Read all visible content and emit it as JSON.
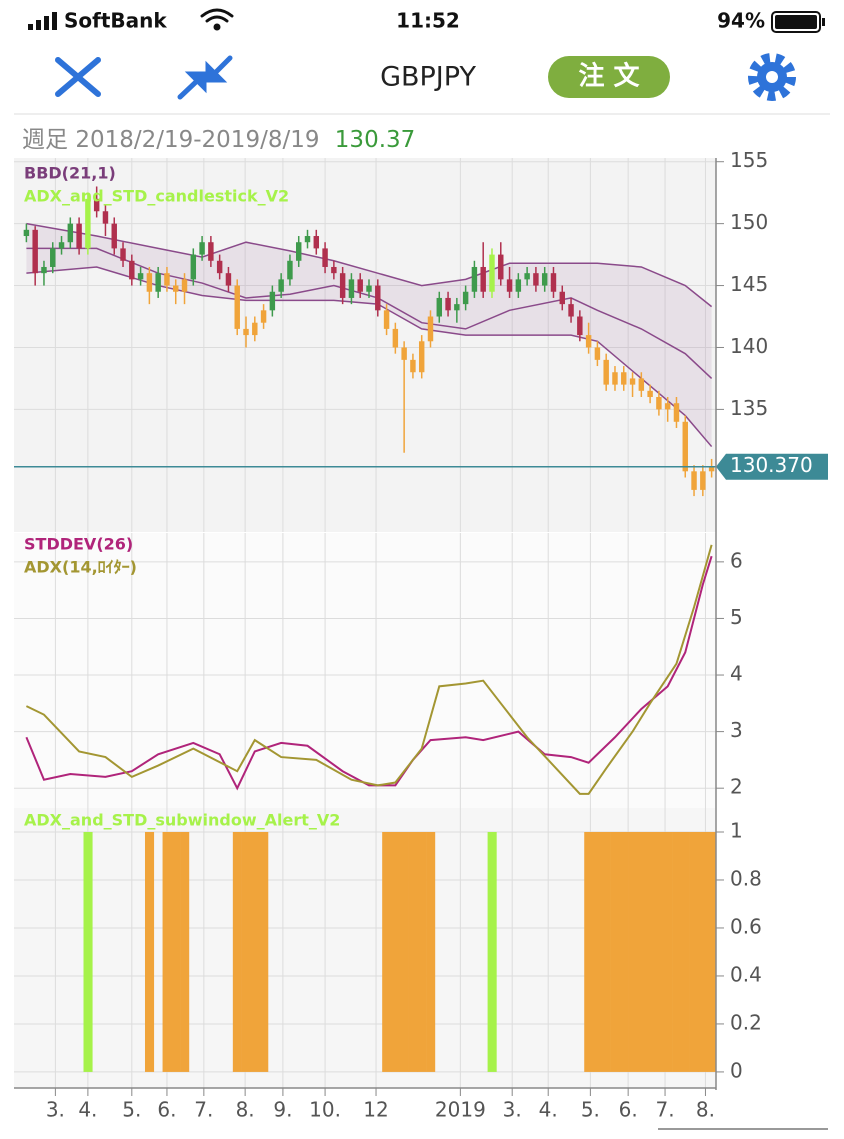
{
  "status": {
    "carrier": "SoftBank",
    "time": "11:52",
    "battery": "94%"
  },
  "nav": {
    "symbol": "GBPJPY",
    "order_button": "注 文"
  },
  "info": {
    "period": "週足",
    "range": "2018/2/19-2019/8/19"
  },
  "chart_data": [
    {
      "type": "candlestick",
      "indicator": "BBD(21,1)",
      "title": "ADX_and_STD_candlestick_V2",
      "xlim": [
        -0.5,
        78.5
      ],
      "ylim": [
        125.1,
        155.3
      ],
      "yticks": [
        135,
        140,
        145,
        150,
        155
      ],
      "grid": true,
      "colors": {
        "up": "#3e9a4c",
        "down": "#b0304e"
      },
      "last": {
        "value": 130.37,
        "label": "130.370",
        "color": "#3d8a96"
      },
      "ohlc": [
        [
          149,
          150,
          148.5,
          149.5
        ],
        [
          149.5,
          149.8,
          145,
          146
        ],
        [
          146,
          147,
          145,
          146.5
        ],
        [
          146.5,
          148.5,
          146,
          148
        ],
        [
          148,
          149,
          147.5,
          148.5
        ],
        [
          148.5,
          150.5,
          148,
          150
        ],
        [
          150,
          150.5,
          147.5,
          148
        ],
        [
          148,
          152.5,
          147.5,
          152
        ],
        [
          152,
          153,
          150.5,
          151
        ],
        [
          151,
          151.5,
          149,
          150
        ],
        [
          150,
          150.5,
          147.5,
          148
        ],
        [
          148,
          148.5,
          146.5,
          147
        ],
        [
          147,
          147.5,
          145,
          145.5
        ],
        [
          145.5,
          146.5,
          145,
          146
        ],
        [
          146,
          146.5,
          143.5,
          144.5
        ],
        [
          144.5,
          146.5,
          144,
          146
        ],
        [
          146,
          146.5,
          144.5,
          145
        ],
        [
          145,
          145.5,
          143.5,
          144.5
        ],
        [
          144.5,
          146,
          143.5,
          145.5
        ],
        [
          145.5,
          148,
          145,
          147.5
        ],
        [
          147.5,
          149,
          147,
          148.5
        ],
        [
          148.5,
          149,
          146.5,
          147
        ],
        [
          147,
          147.5,
          145.5,
          146
        ],
        [
          146,
          146.5,
          144.5,
          145
        ],
        [
          145,
          145.5,
          141,
          141.5
        ],
        [
          141.5,
          142.5,
          140,
          141
        ],
        [
          141,
          142.5,
          140.5,
          142
        ],
        [
          142,
          143.5,
          141.5,
          143
        ],
        [
          143,
          145,
          142.5,
          144.5
        ],
        [
          144.5,
          146,
          144,
          145.5
        ],
        [
          145.5,
          147.5,
          145,
          147
        ],
        [
          147,
          149,
          146.5,
          148.5
        ],
        [
          148.5,
          149.5,
          148,
          149
        ],
        [
          149,
          149.5,
          147.5,
          148
        ],
        [
          148,
          148.5,
          146,
          146.5
        ],
        [
          146.5,
          147,
          145.5,
          146
        ],
        [
          146,
          146.5,
          143.5,
          144
        ],
        [
          144,
          146,
          143.5,
          145.5
        ],
        [
          145.5,
          146,
          144,
          144.5
        ],
        [
          144.5,
          145.5,
          144,
          145
        ],
        [
          145,
          145.5,
          142.5,
          143
        ],
        [
          143,
          143.5,
          141,
          141.5
        ],
        [
          141.5,
          142,
          139.5,
          140
        ],
        [
          140,
          140.5,
          131.5,
          139
        ],
        [
          139,
          139.5,
          137.5,
          138
        ],
        [
          138,
          141,
          137.5,
          140.5
        ],
        [
          140.5,
          143,
          140,
          142.5
        ],
        [
          142.5,
          144.5,
          142,
          144
        ],
        [
          144,
          144.5,
          142.5,
          143
        ],
        [
          143,
          144,
          142,
          143.5
        ],
        [
          143.5,
          145,
          143,
          144.5
        ],
        [
          144.5,
          147,
          144,
          146.5
        ],
        [
          146.5,
          148.5,
          144,
          144.5
        ],
        [
          144.5,
          148,
          144,
          147.5
        ],
        [
          147.5,
          148.5,
          145,
          145.5
        ],
        [
          145.5,
          146.5,
          144,
          144.5
        ],
        [
          144.5,
          146,
          144,
          145.5
        ],
        [
          145.5,
          146.5,
          145,
          146
        ],
        [
          146,
          146.5,
          144.5,
          145
        ],
        [
          145,
          146.5,
          144.5,
          146
        ],
        [
          146,
          146.5,
          144,
          144.5
        ],
        [
          144.5,
          145,
          143,
          143.5
        ],
        [
          143.5,
          144,
          142,
          142.5
        ],
        [
          142.5,
          143,
          140.5,
          141
        ],
        [
          141,
          142,
          139.5,
          140
        ],
        [
          140,
          140.5,
          138.5,
          139
        ],
        [
          139,
          139.5,
          136.5,
          137
        ],
        [
          137,
          138.5,
          136.5,
          138
        ],
        [
          138,
          138.5,
          136.5,
          137
        ],
        [
          137,
          138,
          136,
          137.5
        ],
        [
          137.5,
          138,
          136,
          136.5
        ],
        [
          136.5,
          137,
          135.5,
          136
        ],
        [
          136,
          136.5,
          134.5,
          135
        ],
        [
          135,
          136,
          134,
          135.5
        ],
        [
          135.5,
          136,
          133.5,
          134
        ],
        [
          134,
          134.5,
          129.5,
          130
        ],
        [
          130,
          130.5,
          128,
          128.5
        ],
        [
          128.5,
          130.5,
          128,
          130
        ],
        [
          130,
          131,
          129.5,
          130.37
        ]
      ],
      "bands": {
        "color": "#8a4a8a",
        "fill": "rgba(150,90,150,0.12)",
        "x": [
          0,
          8,
          15,
          20,
          25,
          30,
          35,
          40,
          45,
          50,
          55,
          62,
          65,
          70,
          75,
          78
        ],
        "upper": [
          150,
          149,
          148,
          147.3,
          148.5,
          147.8,
          147,
          146,
          145,
          145.5,
          146.8,
          146.8,
          146.8,
          146.5,
          145,
          143.3
        ],
        "middle": [
          148,
          148,
          146,
          145.2,
          144,
          144.3,
          145,
          144,
          142,
          141.5,
          143,
          144,
          143,
          141.5,
          139.5,
          137.5
        ],
        "lower": [
          146,
          146.5,
          145,
          144.2,
          143.8,
          143.8,
          143.8,
          143.5,
          141.5,
          141,
          141,
          141,
          140.5,
          137.5,
          134.5,
          132
        ]
      }
    },
    {
      "type": "line",
      "xlim": [
        -0.5,
        78.5
      ],
      "ylim": [
        1.65,
        6.51
      ],
      "yticks": [
        2,
        3,
        4,
        5,
        6
      ],
      "grid": true,
      "series": [
        {
          "name": "STDDEV(26)",
          "color": "#b0247a",
          "x": [
            0,
            2,
            5,
            9,
            12,
            15,
            19,
            22,
            24,
            26,
            29,
            32,
            36,
            39,
            42,
            44,
            46,
            50,
            52,
            56,
            59,
            62,
            64,
            67,
            70,
            73,
            75,
            77,
            78
          ],
          "values": [
            2.9,
            2.15,
            2.25,
            2.2,
            2.3,
            2.6,
            2.8,
            2.6,
            2.0,
            2.65,
            2.8,
            2.75,
            2.3,
            2.05,
            2.05,
            2.5,
            2.85,
            2.9,
            2.85,
            3.0,
            2.6,
            2.55,
            2.45,
            2.9,
            3.4,
            3.8,
            4.4,
            5.6,
            6.1
          ]
        },
        {
          "name": "ADX(14,ﾛｲﾀｰ)",
          "color": "#a39632",
          "x": [
            0,
            2,
            6,
            9,
            12,
            15,
            19,
            24,
            26,
            29,
            33,
            37,
            40,
            42,
            45,
            47,
            50,
            52,
            54,
            57,
            60,
            63,
            64,
            66,
            69,
            71,
            74,
            76,
            78
          ],
          "values": [
            3.45,
            3.3,
            2.65,
            2.55,
            2.2,
            2.4,
            2.7,
            2.3,
            2.85,
            2.55,
            2.5,
            2.15,
            2.05,
            2.1,
            2.7,
            3.8,
            3.85,
            3.9,
            3.5,
            2.9,
            2.4,
            1.9,
            1.9,
            2.35,
            3.0,
            3.5,
            4.2,
            5.2,
            6.3
          ]
        }
      ]
    },
    {
      "type": "bar",
      "title": "ADX_and_STD_subwindow_Alert_V2",
      "xlim": [
        -0.5,
        78.5
      ],
      "ylim": [
        -0.067,
        1.1
      ],
      "yticks": [
        0,
        0.2,
        0.4,
        0.6,
        0.8,
        1
      ],
      "grid": true,
      "xticks": [
        {
          "value": 3.3,
          "label": "3."
        },
        {
          "value": 7,
          "label": "4."
        },
        {
          "value": 12,
          "label": "5."
        },
        {
          "value": 16,
          "label": "6."
        },
        {
          "value": 20.2,
          "label": "7."
        },
        {
          "value": 24.9,
          "label": "8."
        },
        {
          "value": 29.2,
          "label": "9."
        },
        {
          "value": 34,
          "label": "10."
        },
        {
          "value": 39.8,
          "label": "12"
        },
        {
          "value": 49.4,
          "label": "2019"
        },
        {
          "value": 55.3,
          "label": "3."
        },
        {
          "value": 59.4,
          "label": "4."
        },
        {
          "value": 64.2,
          "label": "5."
        },
        {
          "value": 68.5,
          "label": "6."
        },
        {
          "value": 72.7,
          "label": "7."
        },
        {
          "value": 77.3,
          "label": "8."
        }
      ],
      "series": [
        {
          "color": "#f0a43a",
          "values": [
            0,
            0,
            0,
            0,
            0,
            0,
            0,
            0,
            0,
            0,
            0,
            0,
            0,
            0,
            1,
            0,
            1,
            1,
            1,
            0,
            0,
            0,
            0,
            0,
            1,
            1,
            1,
            1,
            0,
            0,
            0,
            0,
            0,
            0,
            0,
            0,
            0,
            0,
            0,
            0,
            0,
            1,
            1,
            1,
            1,
            1,
            1,
            0,
            0,
            0,
            0,
            0,
            0,
            0,
            0,
            0,
            0,
            0,
            0,
            0,
            0,
            0,
            0,
            0,
            1,
            1,
            1,
            1,
            1,
            1,
            1,
            1,
            1,
            1,
            1,
            1,
            1,
            1,
            1
          ]
        },
        {
          "color": "#a6f24a",
          "values": [
            0,
            0,
            0,
            0,
            0,
            0,
            0,
            1,
            0,
            0,
            0,
            0,
            0,
            0,
            0,
            0,
            0,
            0,
            0,
            0,
            0,
            0,
            0,
            0,
            0,
            0,
            0,
            0,
            0,
            0,
            0,
            0,
            0,
            0,
            0,
            0,
            0,
            0,
            0,
            0,
            0,
            0,
            0,
            0,
            0,
            0,
            0,
            0,
            0,
            0,
            0,
            0,
            0,
            1,
            0,
            0,
            0,
            0,
            0,
            0,
            0,
            0,
            0,
            0,
            0,
            0,
            0,
            0,
            0,
            0,
            0,
            0,
            0,
            0,
            0,
            0,
            0,
            0,
            0
          ]
        }
      ]
    }
  ]
}
